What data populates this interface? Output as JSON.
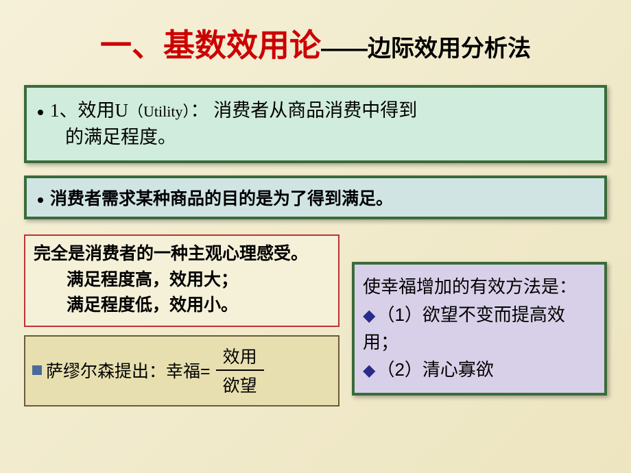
{
  "title": {
    "main": "一、基数效用论",
    "dash": "——",
    "sub": "边际效用分析法"
  },
  "box1": {
    "line1_pre": "1、效用U",
    "line1_paren": "（Utility）",
    "line1_post": "： 消费者从商品消费中得到",
    "line2": "的满足程度。"
  },
  "box2": {
    "text": "消费者需求某种商品的目的是为了得到满足。"
  },
  "box3": {
    "line1": "完全是消费者的一种主观心理感受。",
    "line2": "满足程度高，效用大；",
    "line3": "满足程度低，效用小。"
  },
  "box4": {
    "prefix": "萨缪尔森提出：幸福=",
    "numerator": "效用",
    "denominator": "欲望"
  },
  "box5": {
    "heading": "使幸福增加的有效方法是：",
    "item1": "（1）欲望不变而提高效用；",
    "item2": "（2）清心寡欲"
  },
  "colors": {
    "title_red": "#cc0000",
    "border_green": "#3a6b3a",
    "bg_mint": "#d0ecdc",
    "bg_teal": "#d0e4e4",
    "border_red": "#bb3333",
    "border_tan": "#6b5a3a",
    "bg_tan": "#e8dfb0",
    "bg_purple": "#d8d0e8",
    "diamond_blue": "#2a2a8a",
    "sq_blue": "#4a6a9a"
  }
}
